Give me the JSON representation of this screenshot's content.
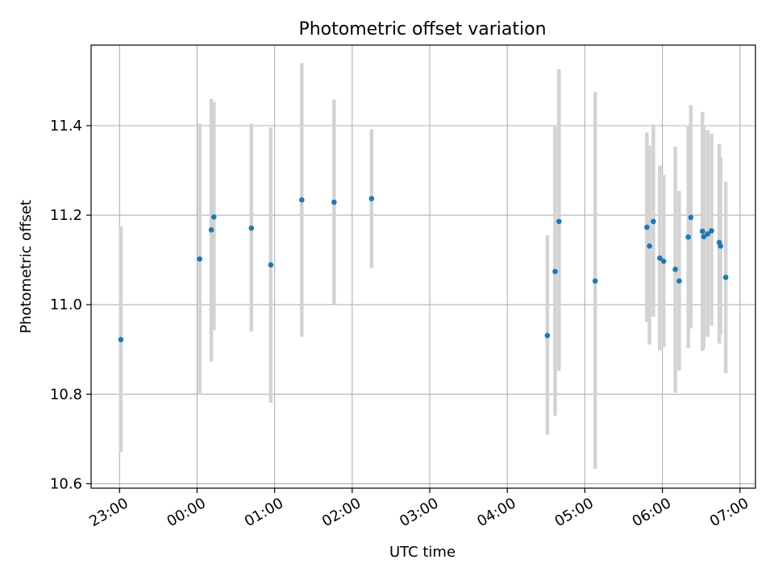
{
  "chart_data": {
    "type": "scatter",
    "title": "Photometric offset variation",
    "xlabel": "UTC time",
    "ylabel": "Photometric offset",
    "x_axis_kind": "time",
    "xlim": [
      "22:38",
      "07:12"
    ],
    "ylim": [
      10.59,
      11.58
    ],
    "x_ticks": [
      "23:00",
      "00:00",
      "01:00",
      "02:00",
      "03:00",
      "04:00",
      "05:00",
      "06:00",
      "07:00"
    ],
    "y_ticks": [
      10.6,
      10.8,
      11.0,
      11.2,
      11.4
    ],
    "y_tick_labels": [
      "10.6",
      "10.8",
      "11.0",
      "11.2",
      "11.4"
    ],
    "grid": true,
    "marker_color": "#1f77b4",
    "errorbar_color": "#d3d3d3",
    "points": [
      {
        "x": "23:01",
        "y": 10.922,
        "yerr_low": 10.67,
        "yerr_high": 11.175
      },
      {
        "x": "00:02",
        "y": 11.102,
        "yerr_low": 10.8,
        "yerr_high": 11.405
      },
      {
        "x": "00:11",
        "y": 11.167,
        "yerr_low": 10.873,
        "yerr_high": 11.46
      },
      {
        "x": "00:13",
        "y": 11.196,
        "yerr_low": 10.943,
        "yerr_high": 11.453
      },
      {
        "x": "00:42",
        "y": 11.171,
        "yerr_low": 10.94,
        "yerr_high": 11.404
      },
      {
        "x": "00:57",
        "y": 11.089,
        "yerr_low": 10.781,
        "yerr_high": 11.396
      },
      {
        "x": "01:21",
        "y": 11.234,
        "yerr_low": 10.928,
        "yerr_high": 11.54
      },
      {
        "x": "01:46",
        "y": 11.229,
        "yerr_low": 11.0,
        "yerr_high": 11.458
      },
      {
        "x": "02:15",
        "y": 11.237,
        "yerr_low": 11.082,
        "yerr_high": 11.392
      },
      {
        "x": "04:31",
        "y": 10.931,
        "yerr_low": 10.709,
        "yerr_high": 11.155
      },
      {
        "x": "04:37",
        "y": 11.074,
        "yerr_low": 10.752,
        "yerr_high": 11.401
      },
      {
        "x": "04:40",
        "y": 11.186,
        "yerr_low": 10.852,
        "yerr_high": 11.526
      },
      {
        "x": "05:08",
        "y": 11.053,
        "yerr_low": 10.633,
        "yerr_high": 11.475
      },
      {
        "x": "05:48",
        "y": 11.173,
        "yerr_low": 10.961,
        "yerr_high": 11.385
      },
      {
        "x": "05:50",
        "y": 11.131,
        "yerr_low": 10.911,
        "yerr_high": 11.356
      },
      {
        "x": "05:53",
        "y": 11.186,
        "yerr_low": 10.973,
        "yerr_high": 11.403
      },
      {
        "x": "05:58",
        "y": 11.104,
        "yerr_low": 10.898,
        "yerr_high": 11.311
      },
      {
        "x": "06:01",
        "y": 11.097,
        "yerr_low": 10.905,
        "yerr_high": 11.29
      },
      {
        "x": "06:10",
        "y": 11.079,
        "yerr_low": 10.803,
        "yerr_high": 11.353
      },
      {
        "x": "06:13",
        "y": 11.053,
        "yerr_low": 10.853,
        "yerr_high": 11.254
      },
      {
        "x": "06:20",
        "y": 11.151,
        "yerr_low": 10.903,
        "yerr_high": 11.401
      },
      {
        "x": "06:22",
        "y": 11.195,
        "yerr_low": 10.947,
        "yerr_high": 11.446
      },
      {
        "x": "06:31",
        "y": 11.164,
        "yerr_low": 10.897,
        "yerr_high": 11.431
      },
      {
        "x": "06:32",
        "y": 11.152,
        "yerr_low": 10.902,
        "yerr_high": 11.398
      },
      {
        "x": "06:35",
        "y": 11.158,
        "yerr_low": 10.928,
        "yerr_high": 11.39
      },
      {
        "x": "06:38",
        "y": 11.165,
        "yerr_low": 10.953,
        "yerr_high": 11.382
      },
      {
        "x": "06:44",
        "y": 11.139,
        "yerr_low": 10.913,
        "yerr_high": 11.359
      },
      {
        "x": "06:45",
        "y": 11.131,
        "yerr_low": 10.933,
        "yerr_high": 11.329
      },
      {
        "x": "06:49",
        "y": 11.061,
        "yerr_low": 10.847,
        "yerr_high": 11.275
      }
    ]
  }
}
